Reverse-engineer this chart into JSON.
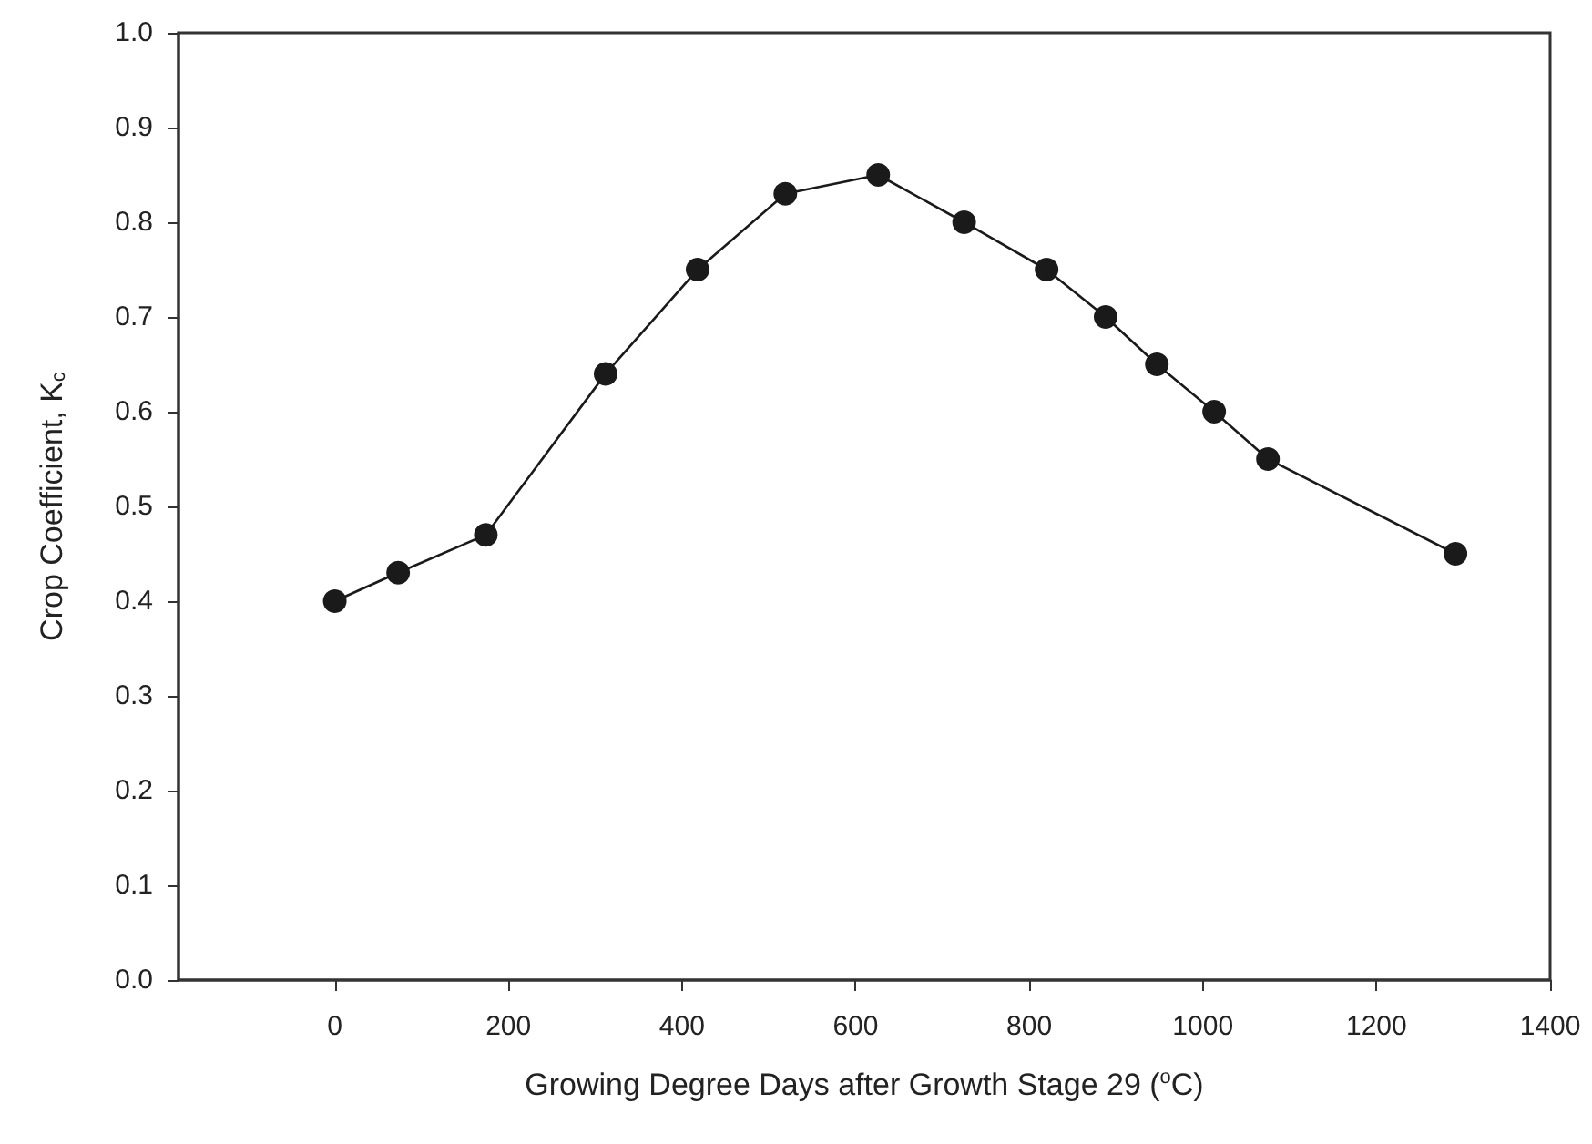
{
  "chart_data": {
    "type": "line",
    "xlabel": "Growing Degree Days after Growth Stage 29 ($^{o}$C)",
    "ylabel": "Crop Coefficient, K$_{c}$",
    "x": [
      0,
      73,
      174,
      312,
      418,
      519,
      626,
      725,
      820,
      888,
      947,
      1013,
      1075,
      1291
    ],
    "series": [
      {
        "color": "#1a1a1a",
        "values": [
          0.4,
          0.43,
          0.47,
          0.64,
          0.75,
          0.83,
          0.85,
          0.8,
          0.75,
          0.7,
          0.65,
          0.6,
          0.55,
          0.45
        ]
      }
    ],
    "xlim": [
      -180,
      1400
    ],
    "xticks": [
      0,
      200,
      400,
      600,
      800,
      1000,
      1200,
      1400
    ],
    "ylim": [
      0,
      1.0
    ],
    "yticks": [
      {
        "value": 0,
        "label": "0.0"
      },
      {
        "value": 0.1,
        "label": "0.1"
      },
      {
        "value": 0.2,
        "label": "0.2"
      },
      {
        "value": 0.3,
        "label": "0.3"
      },
      {
        "value": 0.4,
        "label": "0.4"
      },
      {
        "value": 0.5,
        "label": "0.5"
      },
      {
        "value": 0.6,
        "label": "0.6"
      },
      {
        "value": 0.7,
        "label": "0.7"
      },
      {
        "value": 0.8,
        "label": "0.8"
      },
      {
        "value": 0.9,
        "label": "0.9"
      },
      {
        "value": 1.0,
        "label": "1.0"
      }
    ],
    "marker": "circle",
    "line_style": "solid"
  }
}
